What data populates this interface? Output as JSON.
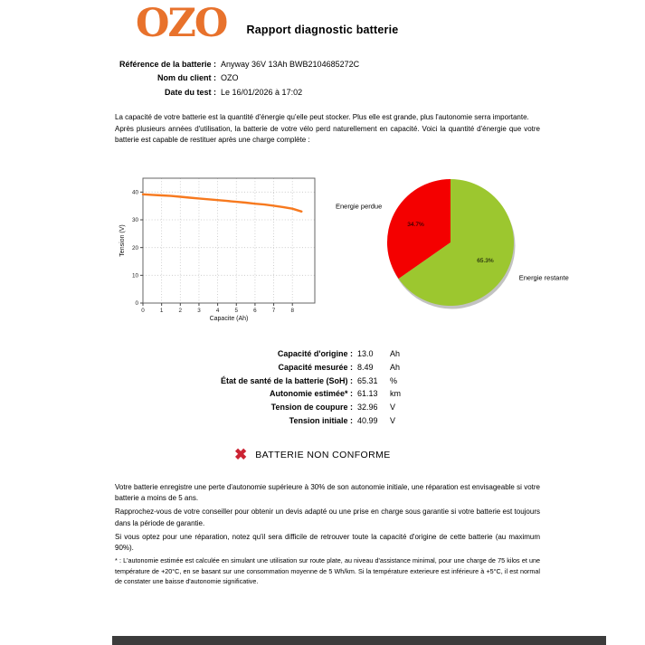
{
  "header": {
    "logo_text": "OZO",
    "title": "Rapport diagnostic batterie"
  },
  "info": [
    {
      "label": "Référence de la batterie :",
      "value": "Anyway 36V 13Ah BWB2104685272C"
    },
    {
      "label": "Nom du client :",
      "value": "OZO"
    },
    {
      "label": "Date du test :",
      "value": "Le 16/01/2026 à 17:02"
    }
  ],
  "intro": [
    "La capacité de votre batterie est la quantité d'énergie qu'elle peut stocker. Plus elle est grande, plus l'autonomie serra importante.",
    "Après plusieurs années d'utilisation, la batterie de votre vélo perd naturellement en capacité. Voici la quantité d'énergie que votre batterie est capable de restituer après une charge complète :"
  ],
  "chart_data": [
    {
      "type": "line",
      "xlabel": "Capacite (Ah)",
      "ylabel": "Tension (V)",
      "xlim": [
        0,
        9.2
      ],
      "ylim": [
        0,
        45
      ],
      "xticks": [
        0,
        1,
        2,
        3,
        4,
        5,
        6,
        7,
        8
      ],
      "yticks": [
        0,
        10,
        20,
        30,
        40
      ],
      "grid": true,
      "line_color": "#f7791e",
      "x": [
        0,
        0.5,
        1,
        1.5,
        2,
        2.5,
        3,
        3.5,
        4,
        4.5,
        5,
        5.5,
        6,
        6.5,
        7,
        7.5,
        8,
        8.49
      ],
      "y": [
        39.2,
        39.0,
        38.8,
        38.6,
        38.3,
        38.0,
        37.7,
        37.4,
        37.1,
        36.8,
        36.5,
        36.2,
        35.8,
        35.5,
        35.1,
        34.6,
        34.0,
        33.0
      ]
    },
    {
      "type": "pie",
      "start_angle": 90,
      "direction": "counterclockwise",
      "shadow": true,
      "slices": [
        {
          "label": "Energie perdue",
          "value": 34.7,
          "percent_label": "34.7%",
          "color": "#f40000"
        },
        {
          "label": "Energie restante",
          "value": 65.3,
          "percent_label": "65.3%",
          "color": "#9cc72f"
        }
      ]
    }
  ],
  "measurements": [
    {
      "label": "Capacité d'origine :",
      "value": "13.0",
      "unit": "Ah"
    },
    {
      "label": "Capacité mesurée :",
      "value": "8.49",
      "unit": "Ah"
    },
    {
      "label": "État de santé de la batterie (SoH) :",
      "value": "65.31",
      "unit": "%"
    },
    {
      "label": "Autonomie estimée* :",
      "value": "61.13",
      "unit": "km"
    },
    {
      "label": "Tension de coupure :",
      "value": "32.96",
      "unit": "V"
    },
    {
      "label": "Tension initiale :",
      "value": "40.99",
      "unit": "V"
    }
  ],
  "verdict": {
    "glyph": "✖",
    "icon": "x-mark-icon",
    "text": "BATTERIE NON CONFORME",
    "color": "#cc2333"
  },
  "advice": [
    "Votre batterie enregistre une perte d'autonomie supérieure à 30% de son autonomie initiale, une réparation est envisageable si votre batterie a moins de 5 ans.",
    "Rapprochez-vous de votre conseiller pour obtenir un devis adapté ou une prise en charge sous garantie si votre batterie est toujours dans la période de garantie.",
    "Si vous optez pour une réparation, notez qu'il sera difficile de retrouver toute la capacité d'origine de cette batterie (au maximum 90%)."
  ],
  "footnote": "* : L'autonomie estimée est calculée en simulant une utilisation sur route plate, au niveau d'assistance minimal, pour une charge de 75 kilos et une température de +20°C, en se basant sur une consommation moyenne de 5 Wh/km. Si la température exterieure est inférieure à +5°C, il est normal de constater une baisse d'autonomie significative.",
  "colors": {
    "logo": "#e8722c",
    "line": "#f7791e",
    "pie_red": "#f40000",
    "pie_green": "#9cc72f",
    "verdict_red": "#cc2333",
    "footer_bar": "#3c3c3c"
  }
}
